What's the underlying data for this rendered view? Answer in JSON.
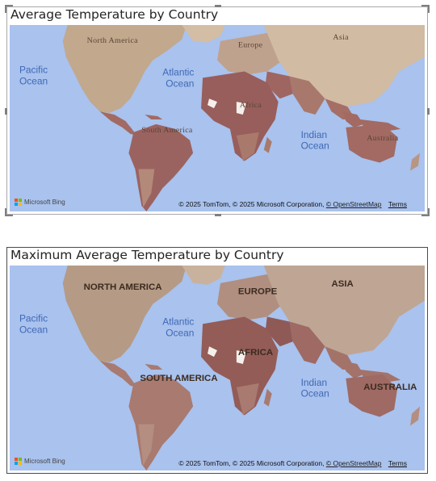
{
  "visuals": [
    {
      "title": "Average Temperature by Country",
      "oceans": {
        "pacific": [
          "Pacific",
          "Ocean"
        ],
        "atlantic": [
          "Atlantic",
          "Ocean"
        ],
        "indian": [
          "Indian",
          "Ocean"
        ]
      },
      "continents": {
        "north_america": "North America",
        "south_america": "South America",
        "europe": "Europe",
        "asia": "Asia",
        "africa": "Africa",
        "australia": "Australia"
      },
      "attribution": {
        "text": "© 2025 TomTom, © 2025 Microsoft Corporation,",
        "link": "© OpenStreetMap",
        "terms": "Terms"
      },
      "brand": "Microsoft Bing"
    },
    {
      "title": "Maximum Average Temperature by Country",
      "oceans": {
        "pacific": [
          "Pacific",
          "Ocean"
        ],
        "atlantic": [
          "Atlantic",
          "Ocean"
        ],
        "indian": [
          "Indian",
          "Ocean"
        ]
      },
      "continents": {
        "north_america": "NORTH AMERICA",
        "south_america": "SOUTH AMERICA",
        "europe": "EUROPE",
        "asia": "ASIA",
        "africa": "AFRICA",
        "australia": "AUSTRALIA"
      },
      "attribution": {
        "text": "© 2025 TomTom, © 2025 Microsoft Corporation,",
        "link": "© OpenStreetMap",
        "terms": "Terms"
      },
      "brand": "Microsoft Bing"
    }
  ],
  "colors": {
    "water": "#a9c2ee",
    "land": "#c7aa8f",
    "hot": "#94595a",
    "warm": "#a9796c",
    "mild": "#b89684"
  }
}
